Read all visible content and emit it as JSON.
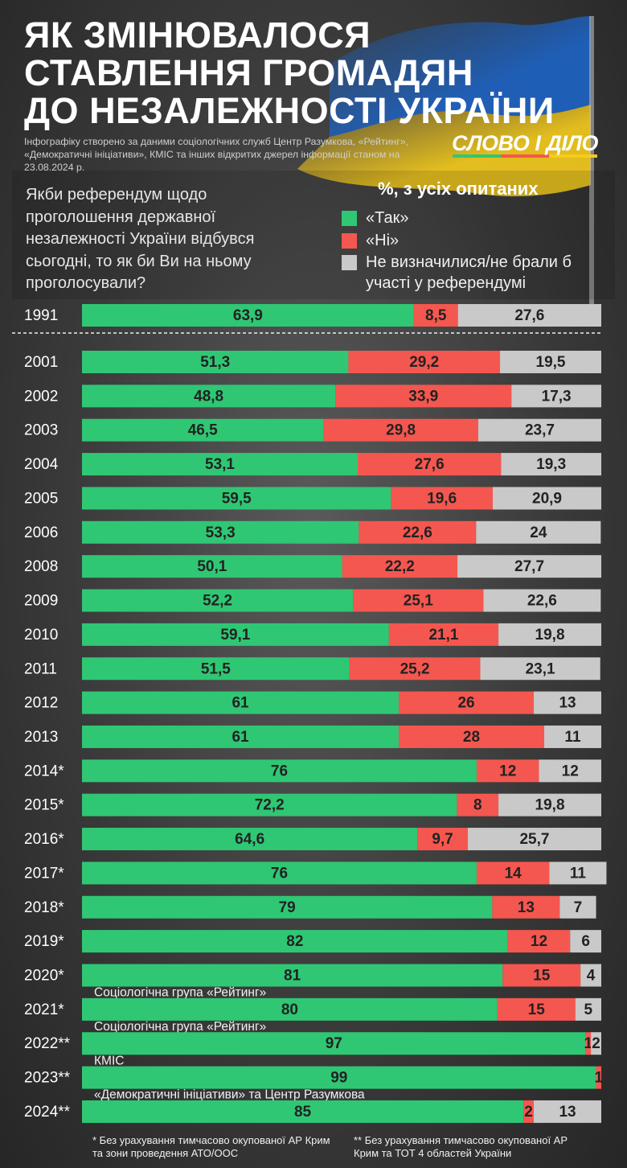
{
  "chart_data": {
    "type": "stacked-bar",
    "orientation": "horizontal",
    "title_lines": [
      "ЯК ЗМІНЮВАЛОСЯ",
      "СТАВЛЕННЯ ГРОМАДЯН",
      "ДО НЕЗАЛЕЖНОСТІ УКРАЇНИ"
    ],
    "subtitle": "Інфографіку створено за даними соціологічних служб Центр Разумкова, «Рейтинг», «Демократичні ініціативи», КМІС та інших відкритих джерел інформації станом на 23.08.2024 р.",
    "brand": "СЛОВО І ДІЛО",
    "question": "Якби референдум щодо проголошення державної незалежності України відбувся сьогодні, то як би Ви на ньому проголосували?",
    "legend_title": "%, з усіх опитаних",
    "xlim": [
      0,
      100
    ],
    "categories": [
      "1991",
      "2001",
      "2002",
      "2003",
      "2004",
      "2005",
      "2006",
      "2008",
      "2009",
      "2010",
      "2011",
      "2012",
      "2013",
      "2014*",
      "2015*",
      "2016*",
      "2017*",
      "2018*",
      "2019*",
      "2020*",
      "2021*",
      "2022**",
      "2023**",
      "2024**"
    ],
    "series": [
      {
        "name": "«Так»",
        "color": "#2fc774",
        "values": [
          63.9,
          51.3,
          48.8,
          46.5,
          53.1,
          59.5,
          53.3,
          50.1,
          52.2,
          59.1,
          51.5,
          61,
          61,
          76,
          72.2,
          64.6,
          76,
          79,
          82,
          81,
          80,
          97,
          99,
          85
        ],
        "value_labels": [
          "63,9",
          "51,3",
          "48,8",
          "46,5",
          "53,1",
          "59,5",
          "53,3",
          "50,1",
          "52,2",
          "59,1",
          "51,5",
          "61",
          "61",
          "76",
          "72,2",
          "64,6",
          "76",
          "79",
          "82",
          "81",
          "80",
          "97",
          "99",
          "85"
        ]
      },
      {
        "name": "«Ні»",
        "color": "#f4574f",
        "values": [
          8.5,
          29.2,
          33.9,
          29.8,
          27.6,
          19.6,
          22.6,
          22.2,
          25.1,
          21.1,
          25.2,
          26,
          28,
          12,
          8,
          9.7,
          14,
          13,
          12,
          15,
          15,
          1,
          1,
          2
        ],
        "value_labels": [
          "8,5",
          "29,2",
          "33,9",
          "29,8",
          "27,6",
          "19,6",
          "22,6",
          "22,2",
          "25,1",
          "21,1",
          "25,2",
          "26",
          "28",
          "12",
          "8",
          "9,7",
          "14",
          "13",
          "12",
          "15",
          "15",
          "1",
          "1",
          "2"
        ]
      },
      {
        "name": "Не визначилися/не брали б участі у референдумі",
        "color": "#c9c9c9",
        "values": [
          27.6,
          19.5,
          17.3,
          23.7,
          19.3,
          20.9,
          24,
          27.7,
          22.6,
          19.8,
          23.1,
          13,
          11,
          12,
          19.8,
          25.7,
          11,
          7,
          6,
          4,
          5,
          2,
          null,
          13
        ],
        "value_labels": [
          "27,6",
          "19,5",
          "17,3",
          "23,7",
          "19,3",
          "20,9",
          "24",
          "27,7",
          "22,6",
          "19,8",
          "23,1",
          "13",
          "11",
          "12",
          "19,8",
          "25,7",
          "11",
          "7",
          "6",
          "4",
          "5",
          "2",
          null,
          "13"
        ]
      }
    ],
    "notes": [
      null,
      null,
      null,
      null,
      null,
      null,
      null,
      null,
      null,
      null,
      null,
      null,
      null,
      null,
      null,
      null,
      null,
      null,
      null,
      "Соціологічна група «Рейтинг»",
      "Соціологічна група «Рейтинг»",
      "КМІС",
      "«Демократичні ініціативи» та Центр Разумкова",
      null
    ],
    "footnotes": [
      "* Без урахування тимчасово окупованої АР Крим та зони проведення АТО/ООС",
      "** Без урахування тимчасово окупованої АР Крим та ТОТ 4 областей України"
    ]
  }
}
